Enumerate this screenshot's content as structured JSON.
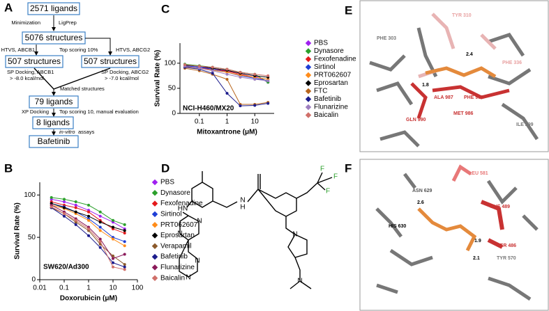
{
  "panels": {
    "labels": [
      "A",
      "B",
      "C",
      "D",
      "E",
      "F"
    ]
  },
  "flowchart": {
    "boxes": [
      "2571 ligands",
      "5076 structures",
      "507 structures",
      "507 structures",
      "79 ligands",
      "8 ligands",
      "Bafetinib"
    ],
    "notes": [
      "Minimization",
      "LigPrep",
      "HTVS, ABCB1",
      "Top scoring 10%",
      "HTVS, ABCG2",
      "SP Docking, ABCB1",
      "> -8.0 kcal/mol",
      "SP Docking, ABCG2",
      "> -7.0 kcal/mol",
      "Matched structures",
      "XP Docking",
      "Top scoring 10, manual evaluation",
      "in-vitro",
      "assays"
    ]
  },
  "structure": {
    "atoms": [
      "HN",
      "N",
      "N",
      "N",
      "N",
      "N",
      "H",
      "F",
      "F",
      "F",
      "N",
      "N"
    ]
  },
  "panel_e": {
    "residues": [
      "PHE 303",
      "TYR 310",
      "PHE 336",
      "2.4",
      "1.8",
      "ALA 987",
      "PHE 983",
      "MET 986",
      "GLN 990",
      "ILE 299"
    ]
  },
  "panel_f": {
    "residues": [
      "LEU 581",
      "ASN 629",
      "2.6",
      "HIS 630",
      "PHE 489",
      "1.9",
      "SER 486",
      "2.1",
      "TYR 570"
    ]
  },
  "chart_data": [
    {
      "type": "line",
      "xscale": "log",
      "xlabel": "Doxorubicin (μM)",
      "ylabel": "Survival Rate (%)",
      "annotation": "SW620/Ad300",
      "x": [
        0.03,
        0.1,
        0.3,
        1,
        3,
        10,
        30
      ],
      "xlim": [
        0.01,
        100
      ],
      "xticks": [
        0.01,
        0.1,
        1,
        10,
        100
      ],
      "ylim": [
        0,
        115
      ],
      "yticks": [
        0,
        50,
        100
      ],
      "series": [
        {
          "name": "PBS",
          "color": "#a020f0",
          "values": [
            95,
            92,
            88,
            82,
            75,
            68,
            60
          ]
        },
        {
          "name": "Dynasore",
          "color": "#2ca02c",
          "values": [
            97,
            95,
            92,
            88,
            80,
            70,
            65
          ]
        },
        {
          "name": "Fexofenadine",
          "color": "#e41a1c",
          "values": [
            92,
            88,
            85,
            80,
            70,
            60,
            55
          ]
        },
        {
          "name": "Sirtinol",
          "color": "#1f3fd6",
          "values": [
            90,
            86,
            80,
            72,
            62,
            50,
            45
          ]
        },
        {
          "name": "PRT062607",
          "color": "#ff8c1a",
          "values": [
            88,
            84,
            78,
            70,
            58,
            48,
            40
          ]
        },
        {
          "name": "Eprosartan",
          "color": "#000000",
          "values": [
            90,
            85,
            80,
            75,
            68,
            62,
            58
          ]
        },
        {
          "name": "Verapamil",
          "color": "#8b5a2b",
          "values": [
            85,
            78,
            68,
            58,
            42,
            28,
            18
          ]
        },
        {
          "name": "Bafetinib",
          "color": "#1c1c8c",
          "values": [
            85,
            75,
            65,
            52,
            38,
            20,
            15
          ]
        },
        {
          "name": "Flunarizine",
          "color": "#8b1a5a",
          "values": [
            88,
            80,
            72,
            62,
            48,
            25,
            30
          ]
        },
        {
          "name": "Baicalin",
          "color": "#d0706a",
          "values": [
            86,
            78,
            70,
            60,
            45,
            15,
            12
          ]
        }
      ]
    },
    {
      "type": "line",
      "xscale": "log",
      "xlabel": "Mitoxantrone (μM)",
      "ylabel": "Survival Rate (%)",
      "annotation": "NCI-H460/MX20",
      "x": [
        0.03,
        0.1,
        0.3,
        1,
        3,
        10,
        30
      ],
      "xlim": [
        0.02,
        50
      ],
      "xticks": [
        0.1,
        1,
        10
      ],
      "ylim": [
        0,
        140
      ],
      "yticks": [
        0,
        50,
        100
      ],
      "series": [
        {
          "name": "PBS",
          "color": "#a020f0",
          "values": [
            95,
            92,
            90,
            85,
            80,
            75,
            62
          ]
        },
        {
          "name": "Dynasore",
          "color": "#2ca02c",
          "values": [
            98,
            95,
            92,
            88,
            82,
            78,
            62
          ]
        },
        {
          "name": "Fexofenadine",
          "color": "#e41a1c",
          "values": [
            93,
            90,
            88,
            84,
            78,
            72,
            68
          ]
        },
        {
          "name": "Sirtinol",
          "color": "#1f3fd6",
          "values": [
            95,
            92,
            88,
            82,
            75,
            70,
            65
          ]
        },
        {
          "name": "PRT062607",
          "color": "#ff8c1a",
          "values": [
            92,
            90,
            86,
            82,
            76,
            72,
            68
          ]
        },
        {
          "name": "Eprosartan",
          "color": "#000000",
          "values": [
            96,
            94,
            90,
            86,
            80,
            75,
            72
          ]
        },
        {
          "name": "FTC",
          "color": "#b8651c",
          "values": [
            90,
            85,
            78,
            68,
            18,
            18,
            22
          ]
        },
        {
          "name": "Bafetinib",
          "color": "#1c1c8c",
          "values": [
            92,
            88,
            80,
            40,
            15,
            16,
            20
          ]
        },
        {
          "name": "Flunarizine",
          "color": "#9e7fbf",
          "values": [
            94,
            90,
            85,
            78,
            72,
            68,
            65
          ]
        },
        {
          "name": "Baicalin",
          "color": "#d0706a",
          "values": [
            97,
            94,
            92,
            88,
            82,
            78,
            75
          ]
        }
      ]
    }
  ]
}
